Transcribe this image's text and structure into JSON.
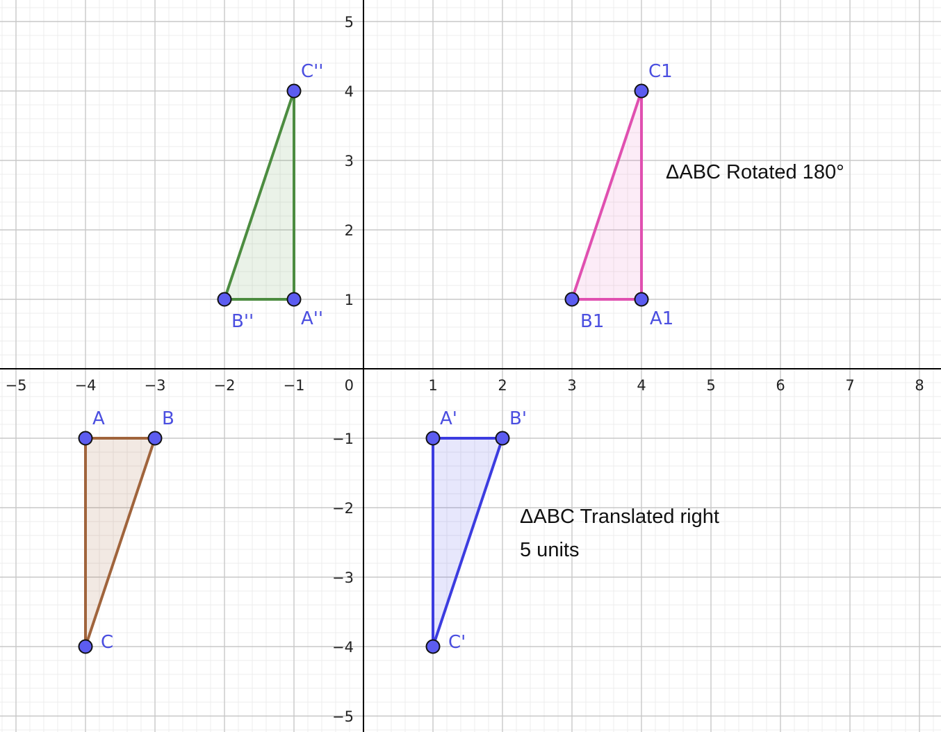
{
  "axes": {
    "x_ticks": [
      "−5",
      "−4",
      "−3",
      "−2",
      "−1",
      "1",
      "2",
      "3",
      "4",
      "5",
      "6",
      "7",
      "8"
    ],
    "x_tick_values": [
      -5,
      -4,
      -3,
      -2,
      -1,
      1,
      2,
      3,
      4,
      5,
      6,
      7,
      8
    ],
    "y_ticks": [
      "5",
      "4",
      "3",
      "2",
      "1",
      "−1",
      "−2",
      "−3",
      "−4",
      "−5"
    ],
    "y_tick_values": [
      5,
      4,
      3,
      2,
      1,
      -1,
      -2,
      -3,
      -4,
      -5
    ],
    "origin_label": "0",
    "xlim": [
      -5.23,
      8.3
    ],
    "ylim": [
      -5.23,
      5.3
    ]
  },
  "triangles": [
    {
      "id": "original",
      "color": "#a0643c",
      "fill": "#a0643c",
      "points": [
        {
          "label": "A",
          "x": -4,
          "y": -1
        },
        {
          "label": "B",
          "x": -3,
          "y": -1
        },
        {
          "label": "C",
          "x": -4,
          "y": -4
        }
      ]
    },
    {
      "id": "translated",
      "color": "#3c3ce0",
      "fill": "#5858e8",
      "points": [
        {
          "label": "A'",
          "x": 1,
          "y": -1
        },
        {
          "label": "B'",
          "x": 2,
          "y": -1
        },
        {
          "label": "C'",
          "x": 1,
          "y": -4
        }
      ]
    },
    {
      "id": "rotated",
      "color": "#e050b0",
      "fill": "#e878c8",
      "points": [
        {
          "label": "A1",
          "x": 4,
          "y": 1
        },
        {
          "label": "B1",
          "x": 3,
          "y": 1
        },
        {
          "label": "C1",
          "x": 4,
          "y": 4
        }
      ]
    },
    {
      "id": "double-prime",
      "color": "#4c8c40",
      "fill": "#6aa05c",
      "points": [
        {
          "label": "A''",
          "x": -1,
          "y": 1
        },
        {
          "label": "B''",
          "x": -2,
          "y": 1
        },
        {
          "label": "C''",
          "x": -1,
          "y": 4
        }
      ]
    }
  ],
  "annotations": {
    "rotated": "ΔABC Rotated 180°",
    "translated_line1": "ΔABC Translated right",
    "translated_line2": "5 units"
  },
  "colors": {
    "point_fill": "#5c5cf0",
    "point_stroke": "#111111",
    "point_label": "#4a4ee0",
    "major_grid": "#c8c8c8",
    "minor_grid": "#ececec",
    "axis": "#000000"
  }
}
